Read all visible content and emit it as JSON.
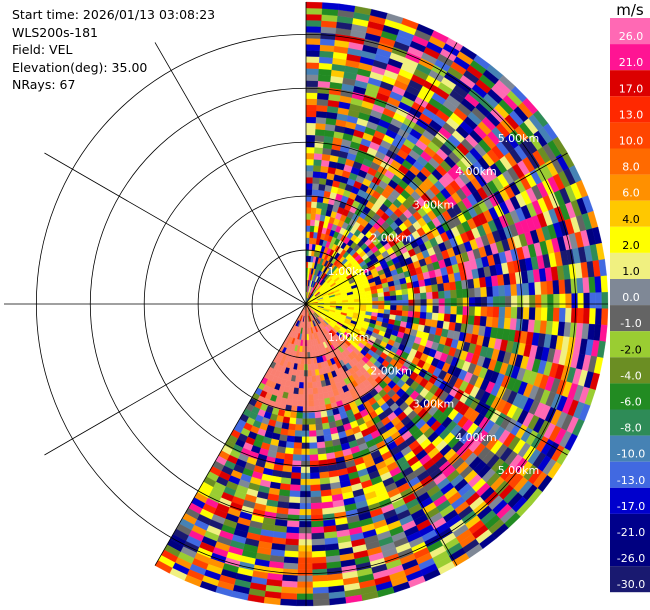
{
  "chart_data": {
    "type": "ppi",
    "meta": [
      "Start time: 2026/01/13 03:08:23",
      "WLS200s-181",
      "Field: VEL",
      "Elevation(deg): 35.00",
      "NRays: 67"
    ],
    "range_ring_labels": [
      "1.00km",
      "2.00km",
      "3.00km",
      "4.00km",
      "5.00km"
    ],
    "range_max_km": 5.6,
    "azimuth_start_deg": 0,
    "azimuth_end_deg": 210,
    "n_rays": 67,
    "n_gates": 50,
    "spoke_every_deg": 30,
    "colorbar": {
      "unit": "m/s",
      "ticks": [
        "26.0",
        "21.0",
        "17.0",
        "13.0",
        "10.0",
        "8.0",
        "6.0",
        "4.0",
        "2.0",
        "1.0",
        "0.0",
        "-1.0",
        "-2.0",
        "-4.0",
        "-6.0",
        "-8.0",
        "-10.0",
        "-13.0",
        "-17.0",
        "-21.0",
        "-26.0",
        "-30.0"
      ],
      "colors": [
        "#ff69b4",
        "#ff1493",
        "#dc0000",
        "#ff2800",
        "#ff4500",
        "#ff6a00",
        "#ff9000",
        "#ffc800",
        "#ffff00",
        "#f0f080",
        "#7f8896",
        "#646464",
        "#9acd32",
        "#6b8e23",
        "#228b22",
        "#2e8b57",
        "#4682b4",
        "#4169e1",
        "#0000cd",
        "#00008b",
        "#000080",
        "#191970"
      ]
    }
  }
}
